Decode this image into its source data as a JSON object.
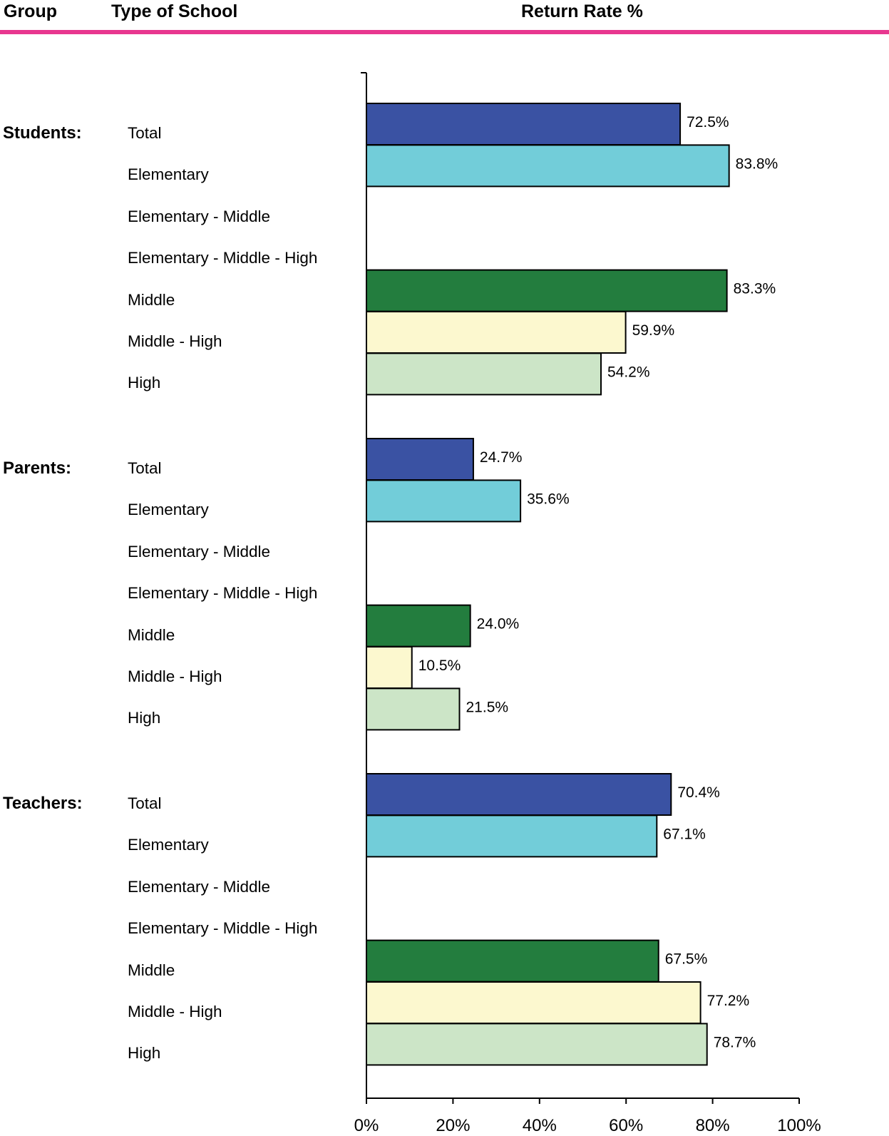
{
  "header": {
    "group_label": "Group",
    "type_label": "Type of School",
    "rate_label": "Return Rate %",
    "rule_color": "#e8378f"
  },
  "colors": {
    "Total": "#3a52a3",
    "Elementary": "#72cdd9",
    "Elementary - Middle": "#b0b0b0",
    "Elementary - Middle - High": "#888888",
    "Middle": "#237d3e",
    "Middle - High": "#fcf8cf",
    "High": "#cce5c7"
  },
  "chart_data": {
    "type": "bar",
    "orientation": "horizontal",
    "title": "Return Rate %",
    "xlim": [
      0,
      100
    ],
    "x_ticks": [
      "0%",
      "20%",
      "40%",
      "60%",
      "80%",
      "100%"
    ],
    "grid": false,
    "groups": [
      {
        "name": "Students:",
        "rows": [
          {
            "label": "Total",
            "value": 72.5,
            "value_label": "72.5%"
          },
          {
            "label": "Elementary",
            "value": 83.8,
            "value_label": "83.8%"
          },
          {
            "label": "Elementary - Middle",
            "value": null,
            "value_label": ""
          },
          {
            "label": "Elementary - Middle - High",
            "value": null,
            "value_label": ""
          },
          {
            "label": "Middle",
            "value": 83.3,
            "value_label": "83.3%"
          },
          {
            "label": "Middle - High",
            "value": 59.9,
            "value_label": "59.9%"
          },
          {
            "label": "High",
            "value": 54.2,
            "value_label": "54.2%"
          }
        ]
      },
      {
        "name": "Parents:",
        "rows": [
          {
            "label": "Total",
            "value": 24.7,
            "value_label": "24.7%"
          },
          {
            "label": "Elementary",
            "value": 35.6,
            "value_label": "35.6%"
          },
          {
            "label": "Elementary - Middle",
            "value": null,
            "value_label": ""
          },
          {
            "label": "Elementary - Middle - High",
            "value": null,
            "value_label": ""
          },
          {
            "label": "Middle",
            "value": 24.0,
            "value_label": "24.0%"
          },
          {
            "label": "Middle - High",
            "value": 10.5,
            "value_label": "10.5%"
          },
          {
            "label": "High",
            "value": 21.5,
            "value_label": "21.5%"
          }
        ]
      },
      {
        "name": "Teachers:",
        "rows": [
          {
            "label": "Total",
            "value": 70.4,
            "value_label": "70.4%"
          },
          {
            "label": "Elementary",
            "value": 67.1,
            "value_label": "67.1%"
          },
          {
            "label": "Elementary - Middle",
            "value": null,
            "value_label": ""
          },
          {
            "label": "Elementary - Middle - High",
            "value": null,
            "value_label": ""
          },
          {
            "label": "Middle",
            "value": 67.5,
            "value_label": "67.5%"
          },
          {
            "label": "Middle - High",
            "value": 77.2,
            "value_label": "77.2%"
          },
          {
            "label": "High",
            "value": 78.7,
            "value_label": "78.7%"
          }
        ]
      }
    ]
  }
}
